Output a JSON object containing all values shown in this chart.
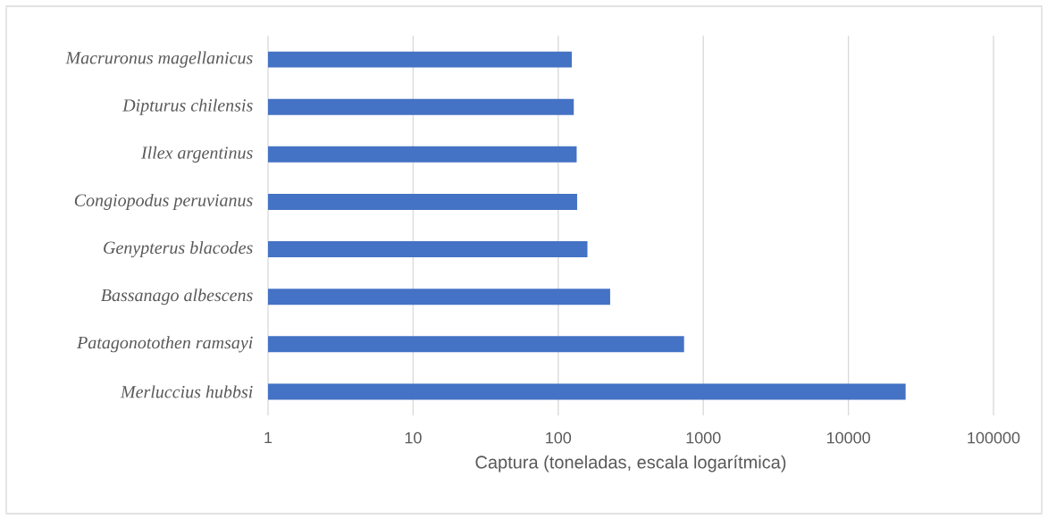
{
  "chart_data": {
    "type": "bar",
    "orientation": "horizontal",
    "log": "x",
    "categories": [
      "Macruronus magellanicus",
      "Dipturus chilensis",
      "Illex argentinus",
      "Congiopodus peruvianus",
      "Genypterus blacodes",
      "Bassanago albescens",
      "Patagonotothen ramsayi",
      "Merluccius hubbsi"
    ],
    "values": [
      124,
      128,
      134,
      135,
      159,
      228,
      737,
      24800
    ],
    "color": "#4472c4",
    "xlabel": "Captura (toneladas, escala logarítmica)",
    "xlim": [
      1,
      100000
    ],
    "xticks": [
      1,
      10,
      100,
      1000,
      10000,
      100000
    ],
    "grid": "x"
  }
}
